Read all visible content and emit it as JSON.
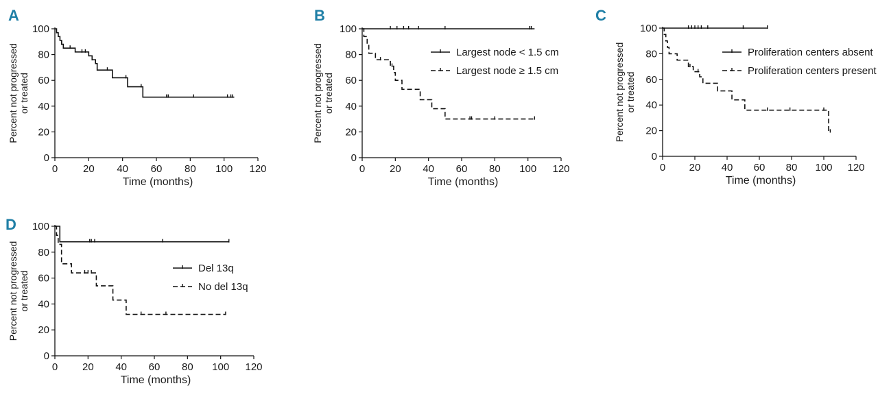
{
  "chart_data": [
    {
      "type": "line",
      "panel": "A",
      "xlabel": "Time (months)",
      "ylabel": [
        "Percent not progressed",
        "or treated"
      ],
      "xlim": [
        0,
        120
      ],
      "ylim": [
        0,
        100
      ],
      "xticks": [
        0,
        20,
        40,
        60,
        80,
        100,
        120
      ],
      "yticks": [
        0,
        20,
        40,
        60,
        80,
        100
      ],
      "series": [
        {
          "name": "",
          "style": "solid",
          "steps": [
            [
              0,
              100
            ],
            [
              1,
              97
            ],
            [
              2,
              94
            ],
            [
              3,
              91
            ],
            [
              4,
              88
            ],
            [
              5,
              85
            ],
            [
              12,
              82
            ],
            [
              20,
              79
            ],
            [
              22,
              76
            ],
            [
              24,
              73
            ],
            [
              25,
              68
            ],
            [
              34,
              62
            ],
            [
              43,
              55
            ],
            [
              52,
              47
            ],
            [
              106,
              47
            ]
          ],
          "censors": [
            4,
            9,
            16,
            18,
            22,
            25,
            31,
            42,
            51,
            66,
            67,
            82,
            102,
            104,
            105
          ]
        }
      ]
    },
    {
      "type": "line",
      "panel": "B",
      "xlabel": "Time (months)",
      "ylabel": [
        "Percent not progressed",
        "or treated"
      ],
      "xlim": [
        0,
        120
      ],
      "ylim": [
        0,
        100
      ],
      "xticks": [
        0,
        20,
        40,
        60,
        80,
        100,
        120
      ],
      "yticks": [
        0,
        20,
        40,
        60,
        80,
        100
      ],
      "legend": [
        {
          "label": "Largest node < 1.5 cm",
          "style": "solid"
        },
        {
          "label": "Largest node ≥ 1.5 cm",
          "style": "dashed"
        }
      ],
      "series": [
        {
          "name": "Largest node < 1.5 cm",
          "style": "solid",
          "steps": [
            [
              0,
              100
            ],
            [
              104,
              100
            ]
          ],
          "censors": [
            17,
            21,
            25,
            28,
            34,
            50,
            101,
            102
          ]
        },
        {
          "name": "Largest node ≥ 1.5 cm",
          "style": "dashed",
          "steps": [
            [
              0,
              100
            ],
            [
              1,
              94
            ],
            [
              3,
              88
            ],
            [
              4,
              81
            ],
            [
              8,
              76
            ],
            [
              17,
              71
            ],
            [
              19,
              66
            ],
            [
              20,
              60
            ],
            [
              24,
              53
            ],
            [
              35,
              45
            ],
            [
              42,
              38
            ],
            [
              50,
              30
            ],
            [
              104,
              30
            ]
          ],
          "censors": [
            11,
            18,
            65,
            66,
            80,
            104
          ]
        }
      ]
    },
    {
      "type": "line",
      "panel": "C",
      "xlabel": "Time (months)",
      "ylabel": [
        "Percent not progressed",
        "or treated"
      ],
      "xlim": [
        0,
        120
      ],
      "ylim": [
        0,
        100
      ],
      "xticks": [
        0,
        20,
        40,
        60,
        80,
        100,
        120
      ],
      "yticks": [
        0,
        20,
        40,
        60,
        80,
        100
      ],
      "legend": [
        {
          "label": "Proliferation centers absent",
          "style": "solid"
        },
        {
          "label": "Proliferation centers present",
          "style": "dashed"
        }
      ],
      "series": [
        {
          "name": "Proliferation centers absent",
          "style": "solid",
          "steps": [
            [
              0,
              100
            ],
            [
              65,
              100
            ]
          ],
          "censors": [
            16,
            18,
            20,
            22,
            24,
            28,
            50,
            65
          ]
        },
        {
          "name": "Proliferation centers present",
          "style": "dashed",
          "steps": [
            [
              0,
              100
            ],
            [
              1,
              95
            ],
            [
              2,
              90
            ],
            [
              3,
              85
            ],
            [
              4,
              80
            ],
            [
              9,
              75
            ],
            [
              16,
              70
            ],
            [
              19,
              66
            ],
            [
              23,
              62
            ],
            [
              25,
              57
            ],
            [
              34,
              51
            ],
            [
              43,
              44
            ],
            [
              51,
              36
            ],
            [
              102,
              36
            ],
            [
              103,
              19
            ],
            [
              104,
              19
            ]
          ],
          "censors": [
            17,
            22,
            65,
            79,
            100,
            104
          ]
        }
      ]
    },
    {
      "type": "line",
      "panel": "D",
      "xlabel": "Time (months)",
      "ylabel": [
        "Percent not progressed",
        "or treated"
      ],
      "xlim": [
        0,
        120
      ],
      "ylim": [
        0,
        100
      ],
      "xticks": [
        0,
        20,
        40,
        60,
        80,
        100,
        120
      ],
      "yticks": [
        0,
        20,
        40,
        60,
        80,
        100
      ],
      "legend": [
        {
          "label": "Del 13q",
          "style": "solid"
        },
        {
          "label": "No del 13q",
          "style": "dashed"
        }
      ],
      "series": [
        {
          "name": "Del 13q",
          "style": "solid",
          "steps": [
            [
              0,
              100
            ],
            [
              3,
              88
            ],
            [
              105,
              88
            ]
          ],
          "censors": [
            21,
            22,
            24,
            65,
            105
          ]
        },
        {
          "name": "No del 13q",
          "style": "dashed",
          "steps": [
            [
              0,
              100
            ],
            [
              1,
              93
            ],
            [
              2,
              86
            ],
            [
              4,
              71
            ],
            [
              10,
              64
            ],
            [
              25,
              54
            ],
            [
              35,
              43
            ],
            [
              43,
              32
            ],
            [
              103,
              32
            ]
          ],
          "censors": [
            18,
            20,
            22,
            52,
            67,
            103
          ]
        }
      ]
    }
  ]
}
